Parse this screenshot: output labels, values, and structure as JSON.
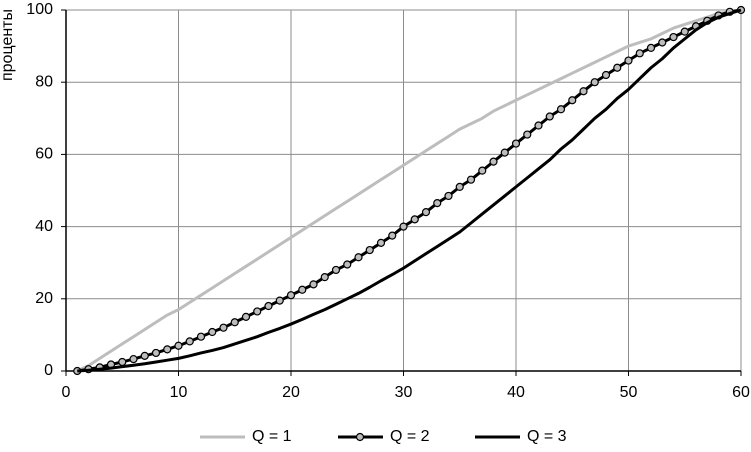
{
  "chart_data": {
    "type": "line",
    "y_label": "проценты",
    "x": [
      1,
      2,
      3,
      4,
      5,
      6,
      7,
      8,
      9,
      10,
      11,
      12,
      13,
      14,
      15,
      16,
      17,
      18,
      19,
      20,
      21,
      22,
      23,
      24,
      25,
      26,
      27,
      28,
      29,
      30,
      31,
      32,
      33,
      34,
      35,
      36,
      37,
      38,
      39,
      40,
      41,
      42,
      43,
      44,
      45,
      46,
      47,
      48,
      49,
      50,
      51,
      52,
      53,
      54,
      55,
      56,
      57,
      58,
      59,
      60
    ],
    "series": [
      {
        "name": "Q = 1",
        "color": "#bdbdbd",
        "values": [
          0,
          1.5,
          3.5,
          5.5,
          7.5,
          9.5,
          11.5,
          13.5,
          15.5,
          17,
          19,
          21,
          23,
          25,
          27,
          29,
          31,
          33,
          35,
          37,
          39,
          41,
          43,
          45,
          47,
          49,
          51,
          53,
          55,
          57,
          59,
          61,
          63,
          65,
          67,
          68.5,
          70,
          72,
          73.5,
          75,
          76.5,
          78,
          79.5,
          81,
          82.5,
          84,
          85.5,
          87,
          88.5,
          90,
          91,
          92,
          93.5,
          95,
          96,
          97,
          98,
          99,
          99.5,
          100
        ]
      },
      {
        "name": "Q = 2",
        "color": "#000000",
        "markers": true,
        "values": [
          0,
          0.5,
          1,
          1.8,
          2.5,
          3.3,
          4.2,
          5,
          6,
          7,
          8.2,
          9.5,
          10.8,
          12,
          13.5,
          15,
          16.5,
          18,
          19.5,
          21,
          22.5,
          24,
          26,
          28,
          29.5,
          31.5,
          33.5,
          35.5,
          37.5,
          40,
          42,
          44,
          46.5,
          48.5,
          51,
          53,
          55.5,
          58,
          60.5,
          63,
          65.5,
          68,
          70.5,
          72.5,
          75,
          77.5,
          80,
          82,
          84,
          86,
          88,
          89.5,
          91,
          92.5,
          94,
          95.5,
          97,
          98.5,
          99.5,
          100
        ]
      },
      {
        "name": "Q = 3",
        "color": "#000000",
        "values": [
          0,
          0.2,
          0.5,
          0.8,
          1.2,
          1.6,
          2,
          2.5,
          3,
          3.5,
          4.2,
          5,
          5.7,
          6.5,
          7.5,
          8.5,
          9.5,
          10.7,
          11.8,
          13,
          14.3,
          15.7,
          17,
          18.5,
          20,
          21.5,
          23.2,
          25,
          26.7,
          28.5,
          30.5,
          32.5,
          34.5,
          36.5,
          38.5,
          41,
          43.5,
          46,
          48.5,
          51,
          53.5,
          56,
          58.5,
          61.5,
          64,
          67,
          70,
          72.5,
          75.5,
          78,
          81,
          84,
          86.5,
          89.5,
          92,
          94.5,
          96.5,
          98,
          99,
          100
        ]
      }
    ],
    "xlim": [
      0,
      60
    ],
    "xticks": [
      0,
      10,
      20,
      30,
      40,
      50,
      60
    ],
    "ylim": [
      0,
      100
    ],
    "yticks": [
      0,
      20,
      40,
      60,
      80,
      100
    ],
    "grid": true
  }
}
